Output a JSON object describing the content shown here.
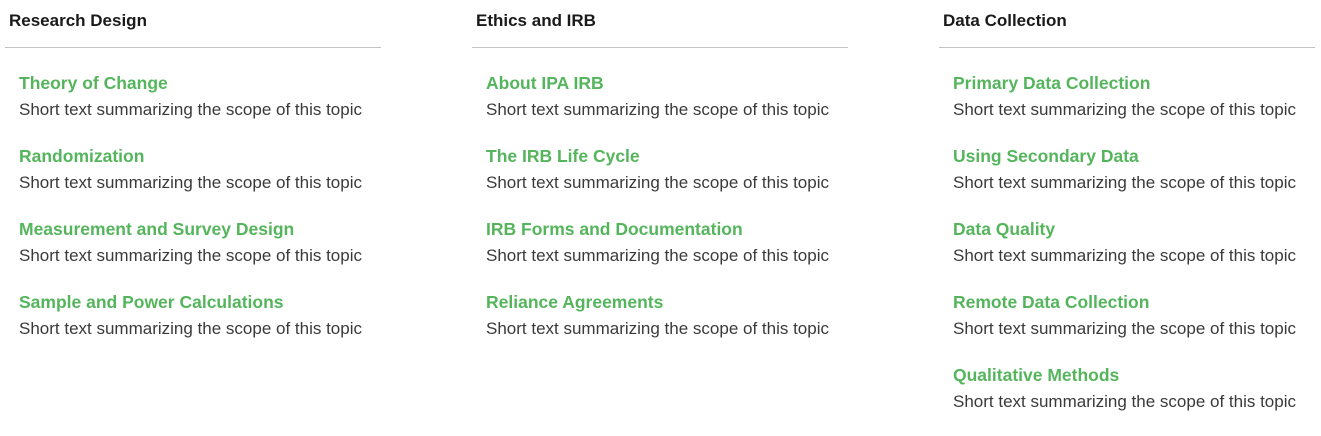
{
  "columns": [
    {
      "title": "Research Design",
      "topics": [
        {
          "title": "Theory of Change",
          "description": "Short text summarizing the scope of this topic"
        },
        {
          "title": "Randomization",
          "description": "Short text summarizing the scope of this topic"
        },
        {
          "title": "Measurement and Survey Design",
          "description": "Short text summarizing the scope of this topic"
        },
        {
          "title": "Sample and Power Calculations",
          "description": "Short text summarizing the scope of this topic"
        }
      ]
    },
    {
      "title": "Ethics and IRB",
      "topics": [
        {
          "title": "About IPA IRB",
          "description": "Short text summarizing the scope of this topic"
        },
        {
          "title": "The IRB Life Cycle",
          "description": "Short text summarizing the scope of this topic"
        },
        {
          "title": "IRB Forms and Documentation",
          "description": "Short text summarizing the scope of this topic"
        },
        {
          "title": "Reliance Agreements",
          "description": "Short text summarizing the scope of this topic"
        }
      ]
    },
    {
      "title": "Data Collection",
      "topics": [
        {
          "title": "Primary Data Collection",
          "description": "Short text summarizing the scope of this topic"
        },
        {
          "title": "Using Secondary Data",
          "description": "Short text summarizing the scope of this topic"
        },
        {
          "title": "Data Quality",
          "description": "Short text summarizing the scope of this topic"
        },
        {
          "title": "Remote Data Collection",
          "description": "Short text summarizing the scope of this topic"
        },
        {
          "title": "Qualitative Methods",
          "description": "Short text summarizing the scope of this topic"
        }
      ]
    }
  ],
  "colors": {
    "link": "#55b55c",
    "heading": "#1a1a1a",
    "body_text": "#3a3a3a",
    "rule": "#c4c4c4"
  }
}
